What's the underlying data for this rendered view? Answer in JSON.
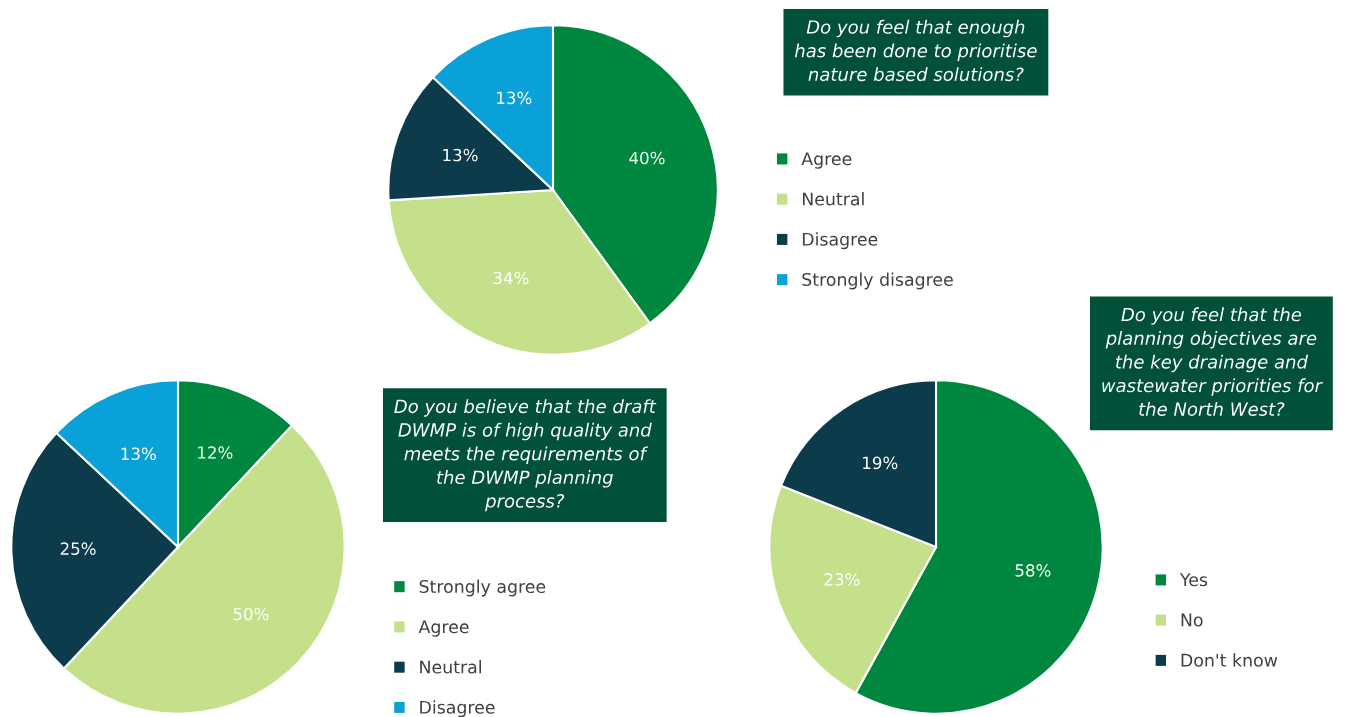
{
  "chart_data": [
    {
      "type": "pie",
      "title": "Do you feel that enough\nhas been done to prioritise\nnature based solutions?",
      "categories": [
        "Agree",
        "Neutral",
        "Disagree",
        "Strongly disagree"
      ],
      "values": [
        40,
        34,
        13,
        13
      ],
      "colors": [
        "#00873f",
        "#c5e08b",
        "#0c3b4b",
        "#0aa0d8"
      ],
      "value_labels": [
        "40%",
        "34%",
        "13%",
        "13%"
      ],
      "legend": "right"
    },
    {
      "type": "pie",
      "title": "Do you believe that the draft\nDWMP is of high quality and\nmeets the requirements of\nthe DWMP planning\nprocess?",
      "categories": [
        "Strongly agree",
        "Agree",
        "Neutral",
        "Disagree"
      ],
      "values": [
        12,
        50,
        25,
        13
      ],
      "colors": [
        "#00873f",
        "#c5e08b",
        "#0c3b4b",
        "#0aa0d8"
      ],
      "value_labels": [
        "12%",
        "50%",
        "25%",
        "13%"
      ],
      "legend": "right"
    },
    {
      "type": "pie",
      "title": "Do you feel that the\nplanning objectives are\nthe key drainage and\nwastewater priorities for\nthe North West?",
      "categories": [
        "Yes",
        "No",
        "Don't know"
      ],
      "values": [
        58,
        23,
        19
      ],
      "colors": [
        "#00873f",
        "#c5e08b",
        "#0c3b4b"
      ],
      "value_labels": [
        "58%",
        "23%",
        "19%"
      ],
      "legend": "right"
    }
  ]
}
